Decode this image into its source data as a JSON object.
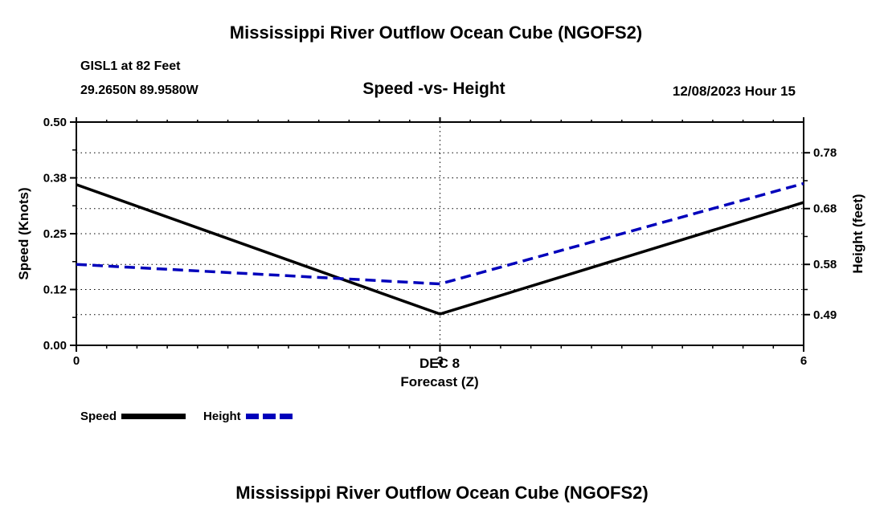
{
  "header": {
    "top_title": "Mississippi River Outflow Ocean Cube (NGOFS2)",
    "station_line1": "GISL1 at 82 Feet",
    "station_line2": "29.2650N  89.9580W",
    "subtitle": "Speed -vs- Height",
    "datetime": "12/08/2023 Hour 15"
  },
  "footer": {
    "bottom_title": "Mississippi River Outflow Ocean Cube (NGOFS2)"
  },
  "legend": {
    "items": [
      {
        "label": "Speed",
        "color": "#000000",
        "dashed": false
      },
      {
        "label": "Height",
        "color": "#0000bb",
        "dashed": true
      }
    ]
  },
  "chart_data": {
    "type": "line",
    "title": "Speed -vs- Height",
    "x": [
      0,
      3,
      6
    ],
    "x_ticks": [
      0,
      3,
      6
    ],
    "x_tick_labels": [
      "0",
      "3",
      "6"
    ],
    "x_minor_step": 0.25,
    "xlabel_line1": "DEC 8",
    "xlabel_line2": "Forecast (Z)",
    "grid": "dotted",
    "left_axis": {
      "label": "Speed (Knots)",
      "tick_labels": [
        "0.00",
        "0.12",
        "0.25",
        "0.38",
        "0.50"
      ],
      "tick_values": [
        0,
        0.125,
        0.25,
        0.375,
        0.5
      ],
      "range": [
        0,
        0.5
      ]
    },
    "right_axis": {
      "label": "Height (feet)",
      "tick_labels": [
        "0.49",
        "0.58",
        "0.68",
        "0.78"
      ],
      "tick_values": [
        0.49,
        0.58,
        0.68,
        0.78
      ],
      "range": [
        0.435,
        0.835
      ]
    },
    "series": [
      {
        "name": "Speed",
        "axis": "left",
        "color": "#000000",
        "dash": null,
        "values": [
          0.36,
          0.07,
          0.32
        ]
      },
      {
        "name": "Height",
        "axis": "right",
        "color": "#0000bb",
        "dash": "13,7",
        "values": [
          0.58,
          0.545,
          0.725
        ]
      }
    ],
    "legend_position": "bottom-left"
  }
}
